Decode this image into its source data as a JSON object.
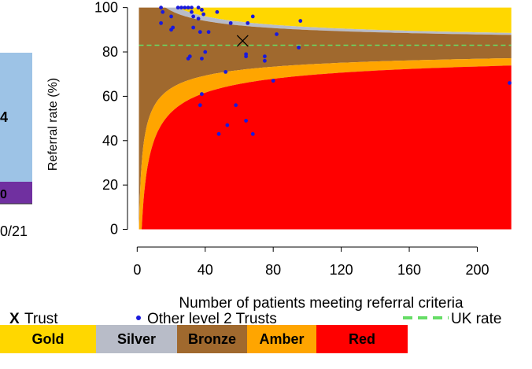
{
  "left_panel": {
    "value_label": "4",
    "lower_label": "0",
    "date_label": "0/21",
    "colors": {
      "upper": "#9dc3e6",
      "lower": "#7030a0"
    }
  },
  "chart_data": {
    "type": "scatter",
    "title": "",
    "xlabel": "Number of patients meeting referral criteria",
    "ylabel": "Referral rate (%)",
    "xlim": [
      -2,
      222
    ],
    "ylim": [
      -3,
      102
    ],
    "x_ticks": [
      0,
      40,
      80,
      120,
      160,
      200
    ],
    "y_ticks": [
      0,
      20,
      40,
      60,
      80,
      100
    ],
    "grid": false,
    "uk_rate": 83,
    "trust_point": {
      "x": 62,
      "y": 85
    },
    "other_trusts": [
      {
        "x": 14,
        "y": 100
      },
      {
        "x": 24,
        "y": 100
      },
      {
        "x": 26,
        "y": 100
      },
      {
        "x": 28,
        "y": 100
      },
      {
        "x": 30,
        "y": 100
      },
      {
        "x": 32,
        "y": 100
      },
      {
        "x": 36,
        "y": 100
      },
      {
        "x": 15,
        "y": 98
      },
      {
        "x": 20,
        "y": 96
      },
      {
        "x": 32,
        "y": 98
      },
      {
        "x": 38,
        "y": 99
      },
      {
        "x": 47,
        "y": 98
      },
      {
        "x": 33,
        "y": 96
      },
      {
        "x": 36,
        "y": 95
      },
      {
        "x": 39,
        "y": 97
      },
      {
        "x": 14,
        "y": 93
      },
      {
        "x": 21,
        "y": 91
      },
      {
        "x": 33,
        "y": 91
      },
      {
        "x": 37,
        "y": 89
      },
      {
        "x": 42,
        "y": 89
      },
      {
        "x": 55,
        "y": 93
      },
      {
        "x": 65,
        "y": 93
      },
      {
        "x": 68,
        "y": 96
      },
      {
        "x": 96,
        "y": 94
      },
      {
        "x": 20,
        "y": 90
      },
      {
        "x": 30,
        "y": 77
      },
      {
        "x": 31,
        "y": 78
      },
      {
        "x": 38,
        "y": 77
      },
      {
        "x": 40,
        "y": 80
      },
      {
        "x": 52,
        "y": 71
      },
      {
        "x": 64,
        "y": 78
      },
      {
        "x": 64,
        "y": 79
      },
      {
        "x": 75,
        "y": 78
      },
      {
        "x": 75,
        "y": 76
      },
      {
        "x": 80,
        "y": 67
      },
      {
        "x": 82,
        "y": 88
      },
      {
        "x": 95,
        "y": 82
      },
      {
        "x": 37,
        "y": 56
      },
      {
        "x": 38,
        "y": 61
      },
      {
        "x": 58,
        "y": 56
      },
      {
        "x": 48,
        "y": 43
      },
      {
        "x": 53,
        "y": 47
      },
      {
        "x": 64,
        "y": 49
      },
      {
        "x": 68,
        "y": 43
      },
      {
        "x": 219,
        "y": 66
      }
    ],
    "bands": {
      "gold": "#ffd700",
      "silver": "#b8bcc8",
      "bronze": "#a0692e",
      "amber": "#ffa500",
      "red": "#ff0000"
    }
  },
  "legend": {
    "trust_marker": "X",
    "trust_label": "Trust",
    "other_label": "Other level 2 Trusts",
    "uk_label": "UK rate"
  },
  "band_legend": [
    {
      "label": "Gold",
      "color": "#ffd700"
    },
    {
      "label": "Silver",
      "color": "#b8bcc8"
    },
    {
      "label": "Bronze",
      "color": "#a0692e"
    },
    {
      "label": "Amber",
      "color": "#ffa500"
    },
    {
      "label": "Red",
      "color": "#ff0000"
    }
  ]
}
